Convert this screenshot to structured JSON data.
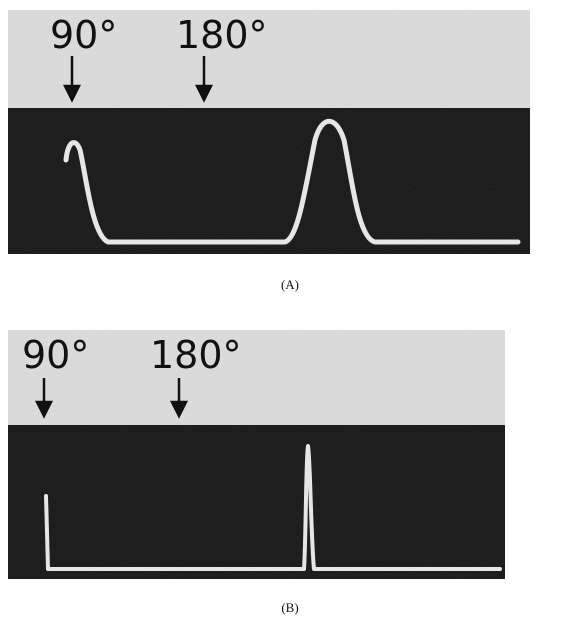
{
  "panels": [
    {
      "markers": [
        "90°",
        "180°"
      ],
      "caption": "(A)"
    },
    {
      "markers": [
        "90°",
        "180°"
      ],
      "caption": "(B)"
    }
  ]
}
